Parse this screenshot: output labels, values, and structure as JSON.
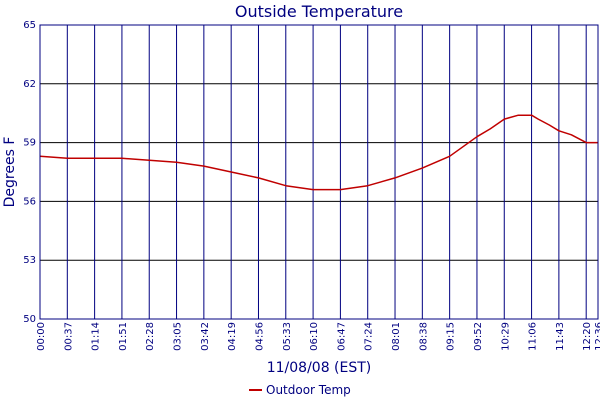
{
  "chart_data": {
    "type": "line",
    "title": "Outside Temperature",
    "xlabel": "11/08/08 (EST)",
    "ylabel": "Degrees F",
    "ylim": [
      50,
      65
    ],
    "y_ticks": [
      "50",
      "53",
      "56",
      "59",
      "62",
      "65"
    ],
    "x_ticks": [
      "00:00",
      "00:37",
      "01:14",
      "01:51",
      "02:28",
      "03:05",
      "03:42",
      "04:19",
      "04:56",
      "05:33",
      "06:10",
      "06:47",
      "07:24",
      "08:01",
      "08:38",
      "09:15",
      "09:52",
      "10:29",
      "11:06",
      "11:43",
      "12:20",
      "12:36"
    ],
    "grid": true,
    "legend_position": "bottom",
    "colors": {
      "series": "#c00000",
      "text": "#000080",
      "grid_vertical": "#000080",
      "grid_horizontal": "#000000"
    },
    "series": [
      {
        "name": "Outdoor Temp",
        "x": [
          "00:00",
          "00:37",
          "01:14",
          "01:51",
          "02:28",
          "03:05",
          "03:42",
          "04:19",
          "04:56",
          "05:33",
          "06:10",
          "06:47",
          "07:24",
          "08:01",
          "08:38",
          "09:15",
          "09:52",
          "10:10",
          "10:29",
          "10:48",
          "11:06",
          "11:15",
          "11:30",
          "11:43",
          "12:00",
          "12:20",
          "12:36"
        ],
        "values": [
          58.3,
          58.2,
          58.2,
          58.2,
          58.1,
          58.0,
          57.8,
          57.5,
          57.2,
          56.8,
          56.6,
          56.6,
          56.8,
          57.2,
          57.7,
          58.3,
          59.3,
          59.7,
          60.2,
          60.4,
          60.4,
          60.2,
          59.9,
          59.6,
          59.4,
          59.0,
          59.0
        ]
      }
    ]
  }
}
